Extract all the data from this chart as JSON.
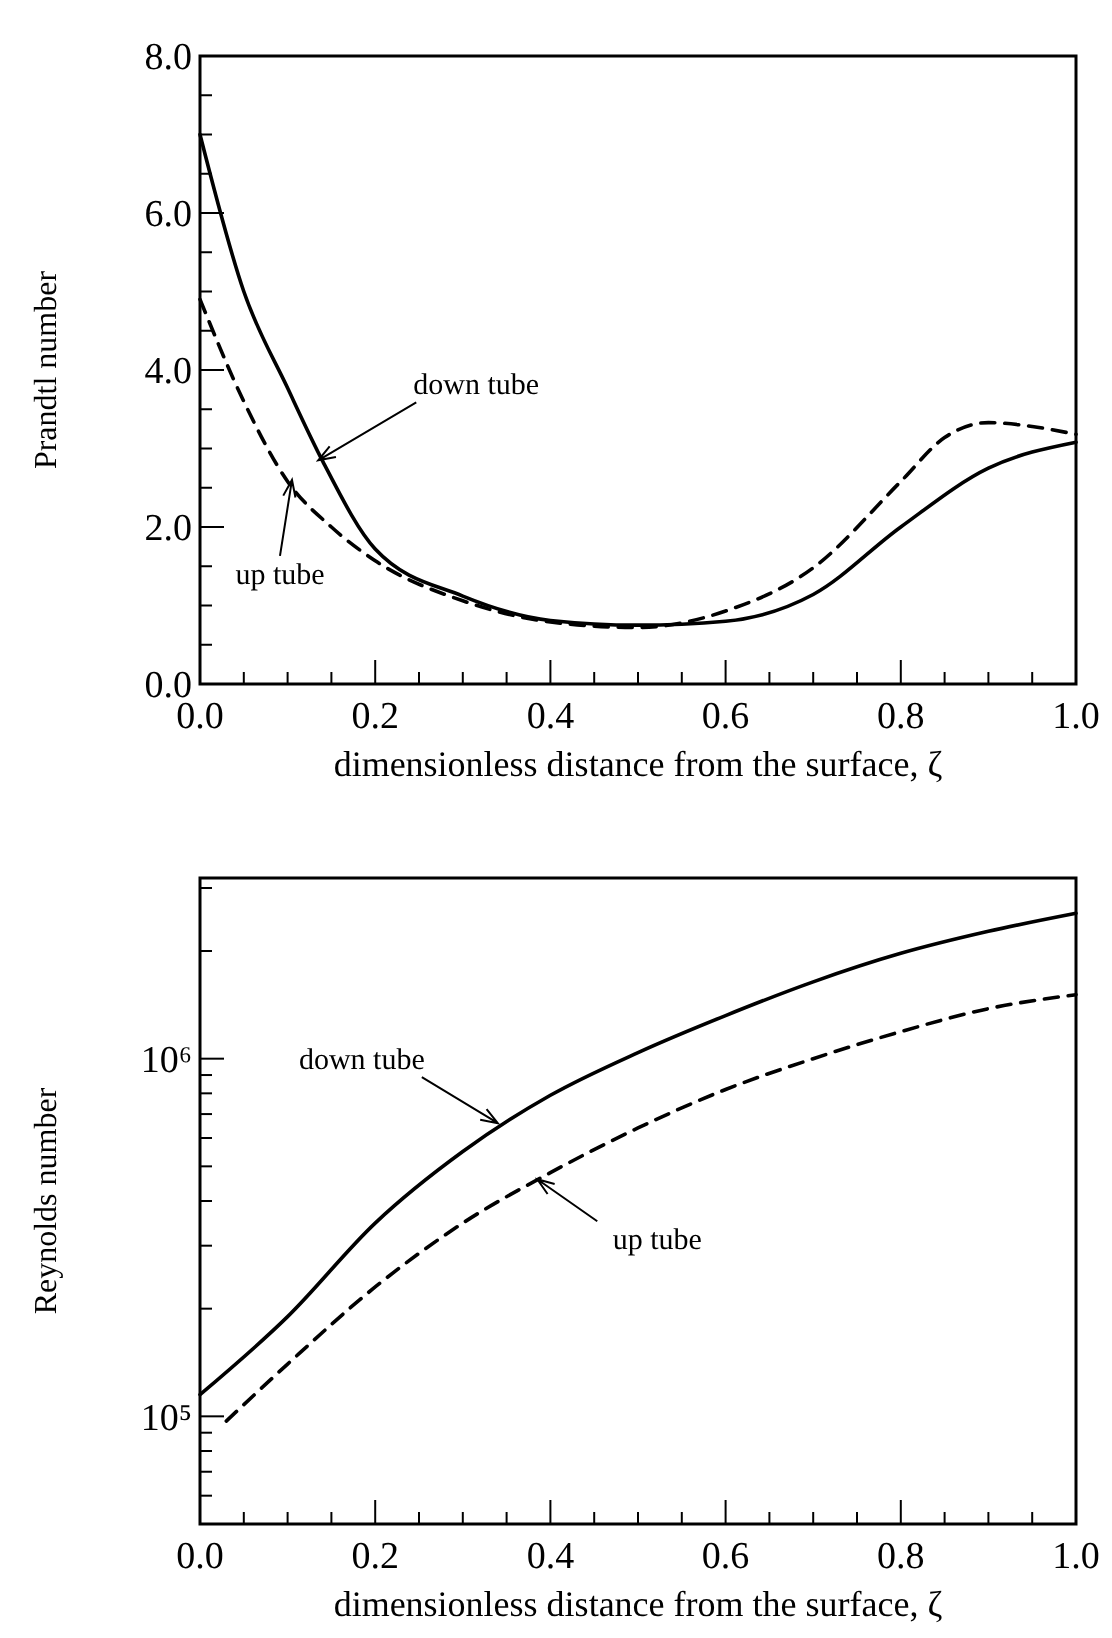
{
  "chart_data": [
    {
      "type": "line",
      "xlabel": "dimensionless distance from the surface,  ζ",
      "ylabel": "Prandtl number",
      "xlim": [
        0,
        1
      ],
      "ylim": [
        0,
        8
      ],
      "xticks": [
        {
          "value": 0,
          "label": "0.0"
        },
        {
          "value": 0.05,
          "label": null
        },
        {
          "value": 0.1,
          "label": null
        },
        {
          "value": 0.15,
          "label": null
        },
        {
          "value": 0.2,
          "label": "0.2"
        },
        {
          "value": 0.25,
          "label": null
        },
        {
          "value": 0.3,
          "label": null
        },
        {
          "value": 0.35,
          "label": null
        },
        {
          "value": 0.4,
          "label": "0.4"
        },
        {
          "value": 0.45,
          "label": null
        },
        {
          "value": 0.5,
          "label": null
        },
        {
          "value": 0.55,
          "label": null
        },
        {
          "value": 0.6,
          "label": "0.6"
        },
        {
          "value": 0.65,
          "label": null
        },
        {
          "value": 0.7,
          "label": null
        },
        {
          "value": 0.75,
          "label": null
        },
        {
          "value": 0.8,
          "label": "0.8"
        },
        {
          "value": 0.85,
          "label": null
        },
        {
          "value": 0.9,
          "label": null
        },
        {
          "value": 0.95,
          "label": null
        },
        {
          "value": 1,
          "label": "1.0"
        }
      ],
      "yticks": [
        {
          "value": 0,
          "label": "0.0"
        },
        {
          "value": 0.5,
          "label": null
        },
        {
          "value": 1,
          "label": null
        },
        {
          "value": 1.5,
          "label": null
        },
        {
          "value": 2,
          "label": "2.0"
        },
        {
          "value": 2.5,
          "label": null
        },
        {
          "value": 3,
          "label": null
        },
        {
          "value": 3.5,
          "label": null
        },
        {
          "value": 4,
          "label": "4.0"
        },
        {
          "value": 4.5,
          "label": null
        },
        {
          "value": 5,
          "label": null
        },
        {
          "value": 5.5,
          "label": null
        },
        {
          "value": 6,
          "label": "6.0"
        },
        {
          "value": 6.5,
          "label": null
        },
        {
          "value": 7,
          "label": null
        },
        {
          "value": 7.5,
          "label": null
        },
        {
          "value": 8,
          "label": "8.0"
        }
      ],
      "grid": false,
      "marker": "none",
      "series": [
        {
          "color": "#000000",
          "line_style": "solid",
          "x": [
            0,
            0.05,
            0.1,
            0.14,
            0.2,
            0.3,
            0.4,
            0.5,
            0.6,
            0.7,
            0.8,
            0.9,
            1.0
          ],
          "values": [
            7.0,
            5.0,
            3.77,
            2.84,
            1.72,
            1.12,
            0.81,
            0.75,
            0.8,
            1.14,
            2.0,
            2.75,
            3.08
          ]
        },
        {
          "color": "#000000",
          "line_style": "dashed",
          "x": [
            0,
            0.05,
            0.1,
            0.15,
            0.2,
            0.3,
            0.4,
            0.5,
            0.6,
            0.7,
            0.8,
            0.85,
            0.9,
            0.95,
            1.0
          ],
          "values": [
            4.9,
            3.6,
            2.58,
            2.0,
            1.57,
            1.06,
            0.79,
            0.72,
            0.93,
            1.48,
            2.58,
            3.14,
            3.33,
            3.28,
            3.18
          ]
        }
      ],
      "annotations": [
        {
          "text": "down tube",
          "x": 0.135,
          "y": 2.85
        },
        {
          "text": "up tube",
          "x": 0.105,
          "y": 2.6
        }
      ]
    },
    {
      "type": "line",
      "xlabel": "dimensionless distance from the surface,  ζ",
      "ylabel": "Reynolds number",
      "log": "y",
      "xlim": [
        0,
        1
      ],
      "ylim": [
        50000,
        3200000
      ],
      "xticks": [
        {
          "value": 0,
          "label": "0.0"
        },
        {
          "value": 0.05,
          "label": null
        },
        {
          "value": 0.1,
          "label": null
        },
        {
          "value": 0.15,
          "label": null
        },
        {
          "value": 0.2,
          "label": "0.2"
        },
        {
          "value": 0.25,
          "label": null
        },
        {
          "value": 0.3,
          "label": null
        },
        {
          "value": 0.35,
          "label": null
        },
        {
          "value": 0.4,
          "label": "0.4"
        },
        {
          "value": 0.45,
          "label": null
        },
        {
          "value": 0.5,
          "label": null
        },
        {
          "value": 0.55,
          "label": null
        },
        {
          "value": 0.6,
          "label": "0.6"
        },
        {
          "value": 0.65,
          "label": null
        },
        {
          "value": 0.7,
          "label": null
        },
        {
          "value": 0.75,
          "label": null
        },
        {
          "value": 0.8,
          "label": "0.8"
        },
        {
          "value": 0.85,
          "label": null
        },
        {
          "value": 0.9,
          "label": null
        },
        {
          "value": 0.95,
          "label": null
        },
        {
          "value": 1,
          "label": "1.0"
        }
      ],
      "yticks": [
        {
          "value": 60000,
          "label": null
        },
        {
          "value": 70000,
          "label": null
        },
        {
          "value": 80000,
          "label": null
        },
        {
          "value": 90000,
          "label": null
        },
        {
          "value": 100000,
          "label": "10⁵"
        },
        {
          "value": 200000,
          "label": null
        },
        {
          "value": 300000,
          "label": null
        },
        {
          "value": 400000,
          "label": null
        },
        {
          "value": 500000,
          "label": null
        },
        {
          "value": 600000,
          "label": null
        },
        {
          "value": 700000,
          "label": null
        },
        {
          "value": 800000,
          "label": null
        },
        {
          "value": 900000,
          "label": null
        },
        {
          "value": 1000000,
          "label": "10⁶"
        },
        {
          "value": 2000000,
          "label": null
        },
        {
          "value": 3000000,
          "label": null
        }
      ],
      "grid": false,
      "marker": "none",
      "series": [
        {
          "color": "#000000",
          "line_style": "solid",
          "x": [
            0,
            0.1,
            0.2,
            0.3,
            0.4,
            0.5,
            0.6,
            0.7,
            0.8,
            0.9,
            1.0
          ],
          "values": [
            115000,
            190000,
            347000,
            550000,
            790000,
            1040000,
            1320000,
            1640000,
            1970000,
            2270000,
            2550000
          ]
        },
        {
          "color": "#000000",
          "line_style": "dashed",
          "x": [
            0.03,
            0.1,
            0.2,
            0.3,
            0.4,
            0.5,
            0.6,
            0.7,
            0.8,
            0.9,
            1.0
          ],
          "values": [
            97000,
            140000,
            230000,
            347000,
            480000,
            640000,
            820000,
            1000000,
            1190000,
            1380000,
            1510000
          ]
        }
      ],
      "annotations": [
        {
          "text": "down tube",
          "x": 0.34,
          "y": 660000
        },
        {
          "text": "up tube",
          "x": 0.385,
          "y": 460000
        }
      ]
    }
  ]
}
